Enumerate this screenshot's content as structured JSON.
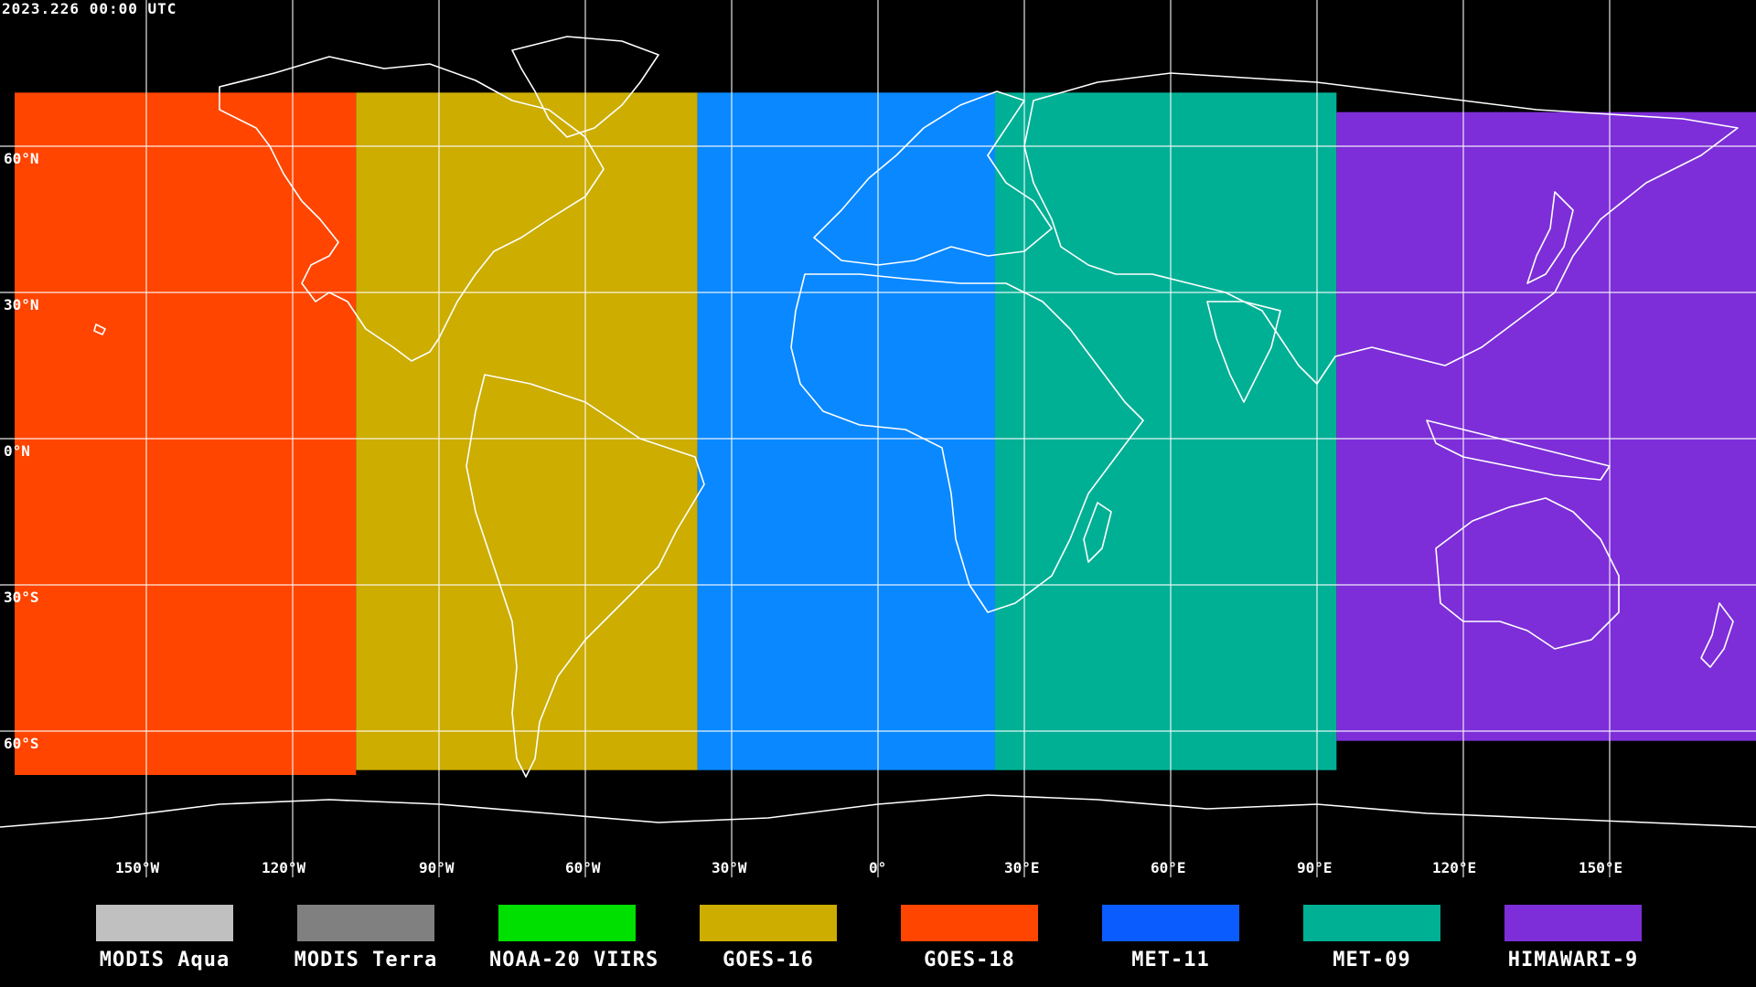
{
  "header": {
    "timestamp": "2023.226 00:00 UTC"
  },
  "map": {
    "background": "#000000",
    "grid_color": "#ffffff",
    "coastline_color": "#ffffff",
    "lat_labels": [
      "60°N",
      "30°N",
      "0°N",
      "30°S",
      "60°S"
    ],
    "lon_labels": [
      "150°W",
      "120°W",
      "90°W",
      "60°W",
      "30°W",
      "0°",
      "30°E",
      "60°E",
      "90°E",
      "120°E",
      "150°E"
    ],
    "coverage": [
      {
        "satellite": "GOES-18",
        "color": "#ff4500",
        "lon_start": -177,
        "lon_end": -107,
        "lat_top": 71,
        "lat_bottom": -69
      },
      {
        "satellite": "GOES-16",
        "color": "#ccad00",
        "lon_start": -107,
        "lon_end": -37,
        "lat_top": 71,
        "lat_bottom": -68
      },
      {
        "satellite": "MET-11",
        "color": "#0a88ff",
        "lon_start": -37,
        "lon_end": 24,
        "lat_top": 71,
        "lat_bottom": -68
      },
      {
        "satellite": "MET-09",
        "color": "#00b095",
        "lon_start": 24,
        "lon_end": 94,
        "lat_top": 71,
        "lat_bottom": -68
      },
      {
        "satellite": "HIMAWARI-9",
        "color": "#7d2ed8",
        "lon_start": 94,
        "lon_end": 180,
        "lat_top": 67,
        "lat_bottom": -62
      }
    ]
  },
  "legend": [
    {
      "label": "MODIS Aqua",
      "color": "#c0c0c0"
    },
    {
      "label": "MODIS Terra",
      "color": "#808080"
    },
    {
      "label": "NOAA-20 VIIRS",
      "color": "#00e000"
    },
    {
      "label": "GOES-16",
      "color": "#ccad00"
    },
    {
      "label": "GOES-18",
      "color": "#ff4500"
    },
    {
      "label": "MET-11",
      "color": "#0a5cff"
    },
    {
      "label": "MET-09",
      "color": "#00b095"
    },
    {
      "label": "HIMAWARI-9",
      "color": "#7d2ed8"
    }
  ]
}
